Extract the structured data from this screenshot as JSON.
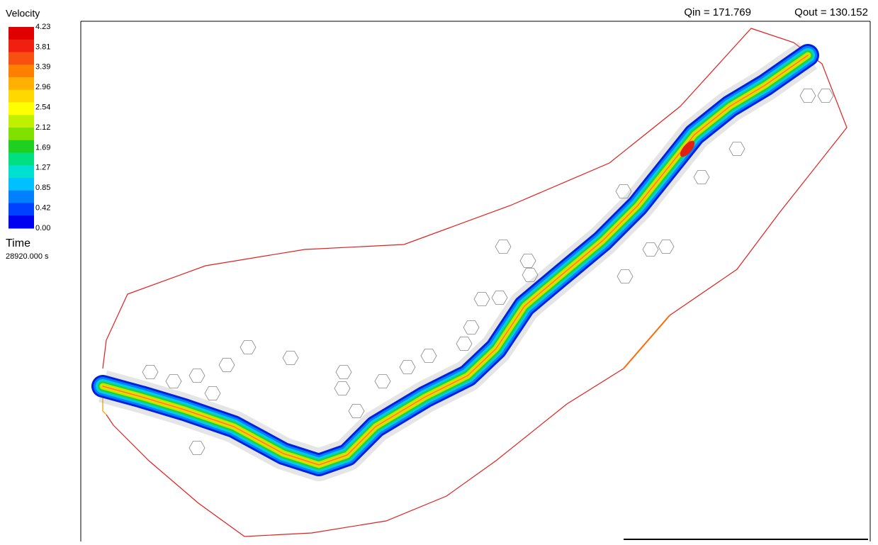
{
  "legend": {
    "title": "Velocity",
    "labels": [
      "4.23",
      "3.81",
      "3.39",
      "2.96",
      "2.54",
      "2.12",
      "1.69",
      "1.27",
      "0.85",
      "0.42",
      "0.00"
    ]
  },
  "time": {
    "label": "Time",
    "value": "28920.000 s"
  },
  "header": {
    "qin": "Qin = 171.769",
    "qout": "Qout = 130.152"
  }
}
